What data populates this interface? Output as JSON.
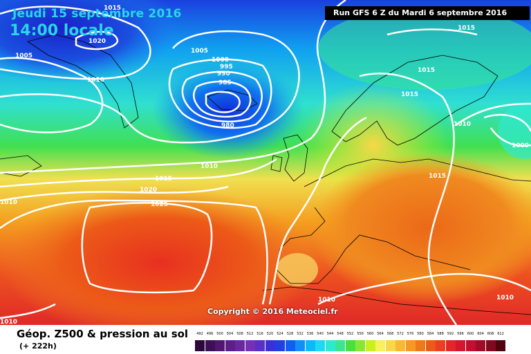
{
  "header": {
    "date": "Jeudi 15 septembre 2016",
    "time": "14:00 locale",
    "run": "Run GFS 6 Z du Mardi 6 septembre 2016"
  },
  "copyright": "Copyright © 2016 Meteociel.fr",
  "legend": {
    "title": "Géop. Z500 & pression au sol",
    "subtitle": "(+ 222h)",
    "scale": [
      {
        "v": "492",
        "c": "#2a0a3a"
      },
      {
        "v": "496",
        "c": "#3d0f56"
      },
      {
        "v": "500",
        "c": "#501670"
      },
      {
        "v": "504",
        "c": "#5d1e8a"
      },
      {
        "v": "508",
        "c": "#6a28a0"
      },
      {
        "v": "512",
        "c": "#7630b8"
      },
      {
        "v": "516",
        "c": "#5a2ec8"
      },
      {
        "v": "520",
        "c": "#3a30d8"
      },
      {
        "v": "524",
        "c": "#2040e0"
      },
      {
        "v": "528",
        "c": "#1060ee"
      },
      {
        "v": "532",
        "c": "#1090f6"
      },
      {
        "v": "536",
        "c": "#10b8f8"
      },
      {
        "v": "540",
        "c": "#20d8f4"
      },
      {
        "v": "544",
        "c": "#30e8d0"
      },
      {
        "v": "548",
        "c": "#38e890"
      },
      {
        "v": "552",
        "c": "#48e040"
      },
      {
        "v": "556",
        "c": "#88e830"
      },
      {
        "v": "560",
        "c": "#c8f020"
      },
      {
        "v": "564",
        "c": "#f8f060"
      },
      {
        "v": "568",
        "c": "#f8d848"
      },
      {
        "v": "572",
        "c": "#f8b830"
      },
      {
        "v": "576",
        "c": "#f89820"
      },
      {
        "v": "580",
        "c": "#f07818"
      },
      {
        "v": "584",
        "c": "#ec5a18"
      },
      {
        "v": "588",
        "c": "#e84020"
      },
      {
        "v": "592",
        "c": "#e02828"
      },
      {
        "v": "596",
        "c": "#d01830"
      },
      {
        "v": "600",
        "c": "#c01030"
      },
      {
        "v": "604",
        "c": "#a00c28"
      },
      {
        "v": "608",
        "c": "#800820"
      },
      {
        "v": "612",
        "c": "#500410"
      }
    ]
  },
  "isobars": [
    "1015",
    "1020",
    "1005",
    "1005",
    "1010",
    "1000",
    "995",
    "990",
    "985",
    "980",
    "1015",
    "1015",
    "1015",
    "1010",
    "1000",
    "1010",
    "1015",
    "1020",
    "1025",
    "1010",
    "1015",
    "1010",
    "1010",
    "1010"
  ]
}
